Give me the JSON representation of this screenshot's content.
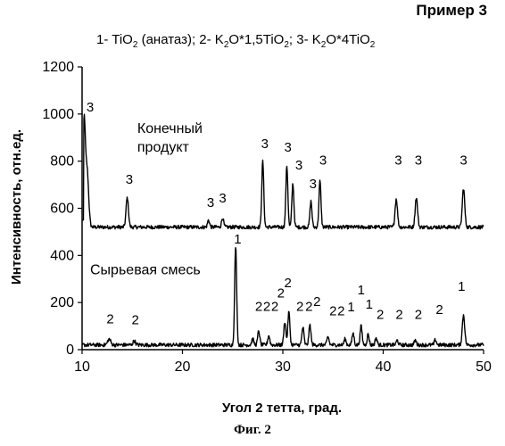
{
  "header": {
    "example_title": "Пример 3",
    "legend": {
      "parts": [
        {
          "text": "1- TiO"
        },
        {
          "sub": "2"
        },
        {
          "text": " (анатаз); 2- K"
        },
        {
          "sub": "2"
        },
        {
          "text": "O*1,5TiO"
        },
        {
          "sub": "2"
        },
        {
          "text": "; 3- K"
        },
        {
          "sub": "2"
        },
        {
          "text": "O*4TiO"
        },
        {
          "sub": "2"
        }
      ]
    }
  },
  "caption": "Фиг. 2",
  "colors": {
    "line": "#000000",
    "background": "#ffffff"
  },
  "chart_data": {
    "type": "line",
    "xlabel": "Угол 2 тетта, град.",
    "ylabel": "Интенсивность, отн.ед.",
    "xlim": [
      10,
      50
    ],
    "ylim": [
      0,
      1200
    ],
    "x_ticks": [
      10,
      20,
      30,
      40,
      50
    ],
    "y_ticks": [
      0,
      200,
      400,
      600,
      800,
      1000,
      1200
    ],
    "grid": false,
    "series": [
      {
        "annotation": "Конечный продукт",
        "baseline": 520,
        "peaks": [
          {
            "x": 10.2,
            "y": 960,
            "w": 0.12
          },
          {
            "x": 10.5,
            "y": 760,
            "w": 0.15
          },
          {
            "x": 14.5,
            "y": 645,
            "w": 0.12
          },
          {
            "x": 22.6,
            "y": 550,
            "w": 0.1
          },
          {
            "x": 24.0,
            "y": 560,
            "w": 0.1
          },
          {
            "x": 28.0,
            "y": 800,
            "w": 0.1
          },
          {
            "x": 30.4,
            "y": 780,
            "w": 0.1
          },
          {
            "x": 31.0,
            "y": 705,
            "w": 0.1
          },
          {
            "x": 32.8,
            "y": 630,
            "w": 0.1
          },
          {
            "x": 33.7,
            "y": 715,
            "w": 0.1
          },
          {
            "x": 41.3,
            "y": 640,
            "w": 0.12
          },
          {
            "x": 43.3,
            "y": 645,
            "w": 0.12
          },
          {
            "x": 48.0,
            "y": 685,
            "w": 0.12
          }
        ],
        "labels": [
          {
            "x": 10.8,
            "y": 1010,
            "text": "3"
          },
          {
            "x": 14.7,
            "y": 705,
            "text": "3"
          },
          {
            "x": 22.8,
            "y": 605,
            "text": "3"
          },
          {
            "x": 24.0,
            "y": 625,
            "text": "3"
          },
          {
            "x": 28.2,
            "y": 855,
            "text": "3"
          },
          {
            "x": 30.5,
            "y": 840,
            "text": "3"
          },
          {
            "x": 31.6,
            "y": 765,
            "text": "3"
          },
          {
            "x": 33.0,
            "y": 685,
            "text": "3"
          },
          {
            "x": 34.0,
            "y": 785,
            "text": "3"
          },
          {
            "x": 41.5,
            "y": 785,
            "text": "3"
          },
          {
            "x": 43.5,
            "y": 785,
            "text": "3"
          },
          {
            "x": 48.0,
            "y": 785,
            "text": "3"
          }
        ]
      },
      {
        "annotation": "Сырьевая смесь",
        "baseline": 20,
        "peaks": [
          {
            "x": 12.7,
            "y": 45,
            "w": 0.15
          },
          {
            "x": 15.2,
            "y": 38,
            "w": 0.12
          },
          {
            "x": 25.3,
            "y": 440,
            "w": 0.1
          },
          {
            "x": 27.0,
            "y": 45,
            "w": 0.1
          },
          {
            "x": 27.6,
            "y": 80,
            "w": 0.1
          },
          {
            "x": 28.6,
            "y": 60,
            "w": 0.1
          },
          {
            "x": 30.2,
            "y": 120,
            "w": 0.1
          },
          {
            "x": 30.6,
            "y": 160,
            "w": 0.1
          },
          {
            "x": 32.0,
            "y": 95,
            "w": 0.1
          },
          {
            "x": 32.7,
            "y": 105,
            "w": 0.1
          },
          {
            "x": 34.5,
            "y": 55,
            "w": 0.1
          },
          {
            "x": 36.2,
            "y": 45,
            "w": 0.1
          },
          {
            "x": 37.0,
            "y": 70,
            "w": 0.1
          },
          {
            "x": 37.8,
            "y": 100,
            "w": 0.1
          },
          {
            "x": 38.5,
            "y": 65,
            "w": 0.1
          },
          {
            "x": 39.3,
            "y": 50,
            "w": 0.1
          },
          {
            "x": 41.4,
            "y": 40,
            "w": 0.1
          },
          {
            "x": 43.2,
            "y": 40,
            "w": 0.1
          },
          {
            "x": 45.2,
            "y": 42,
            "w": 0.1
          },
          {
            "x": 48.0,
            "y": 148,
            "w": 0.12
          }
        ],
        "labels": [
          {
            "x": 25.5,
            "y": 450,
            "text": "1"
          },
          {
            "x": 12.8,
            "y": 112,
            "text": "2"
          },
          {
            "x": 15.3,
            "y": 107,
            "text": "2"
          },
          {
            "x": 27.6,
            "y": 165,
            "text": "2"
          },
          {
            "x": 28.4,
            "y": 165,
            "text": "2"
          },
          {
            "x": 29.2,
            "y": 165,
            "text": "2"
          },
          {
            "x": 29.8,
            "y": 222,
            "text": "2"
          },
          {
            "x": 30.5,
            "y": 265,
            "text": "2"
          },
          {
            "x": 31.7,
            "y": 165,
            "text": "2"
          },
          {
            "x": 32.6,
            "y": 165,
            "text": "2"
          },
          {
            "x": 33.4,
            "y": 185,
            "text": "2"
          },
          {
            "x": 35.0,
            "y": 145,
            "text": "2"
          },
          {
            "x": 35.8,
            "y": 145,
            "text": "2"
          },
          {
            "x": 36.8,
            "y": 162,
            "text": "1"
          },
          {
            "x": 37.8,
            "y": 235,
            "text": "1"
          },
          {
            "x": 38.6,
            "y": 175,
            "text": "1"
          },
          {
            "x": 39.7,
            "y": 130,
            "text": "2"
          },
          {
            "x": 41.6,
            "y": 130,
            "text": "2"
          },
          {
            "x": 43.5,
            "y": 130,
            "text": "2"
          },
          {
            "x": 45.6,
            "y": 152,
            "text": "2"
          },
          {
            "x": 47.8,
            "y": 250,
            "text": "1"
          }
        ]
      }
    ],
    "annotations": [
      {
        "series": 0,
        "lines": [
          "Конечный",
          "продукт"
        ],
        "x": 15.5,
        "y": [
          920,
          840
        ]
      },
      {
        "series": 1,
        "lines": [
          "Сырьевая смесь"
        ],
        "x": 10.8,
        "y": [
          320
        ]
      }
    ]
  }
}
